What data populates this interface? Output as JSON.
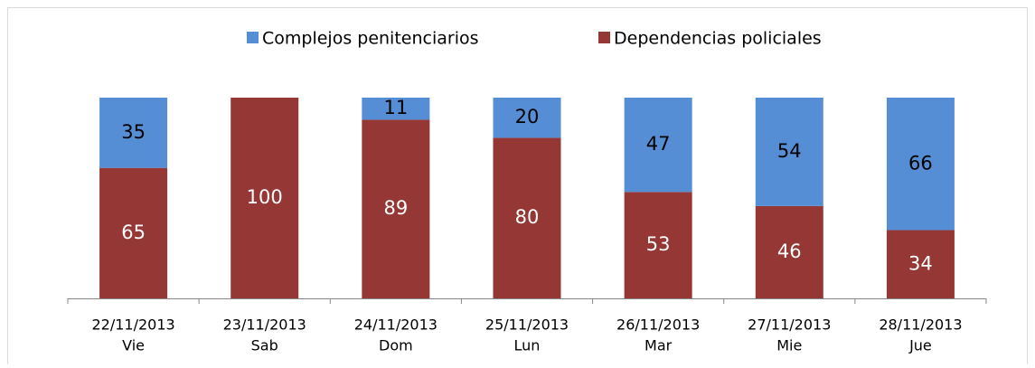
{
  "chart_data": {
    "type": "stacked_bar",
    "categories": [
      [
        "22/11/2013",
        "Vie"
      ],
      [
        "23/11/2013",
        "Sab"
      ],
      [
        "24/11/2013",
        "Dom"
      ],
      [
        "25/11/2013",
        "Lun"
      ],
      [
        "26/11/2013",
        "Mar"
      ],
      [
        "27/11/2013",
        "Mie"
      ],
      [
        "28/11/2013",
        "Jue"
      ]
    ],
    "series": [
      {
        "name": "Dependencias policiales",
        "color": "#953735",
        "values": [
          65,
          100,
          89,
          80,
          53,
          46,
          34
        ]
      },
      {
        "name": "Complejos penitenciarios",
        "color": "#558ed5",
        "values": [
          35,
          0,
          11,
          20,
          47,
          54,
          66
        ]
      }
    ],
    "ylim": [
      0,
      100
    ],
    "legend": "top"
  }
}
